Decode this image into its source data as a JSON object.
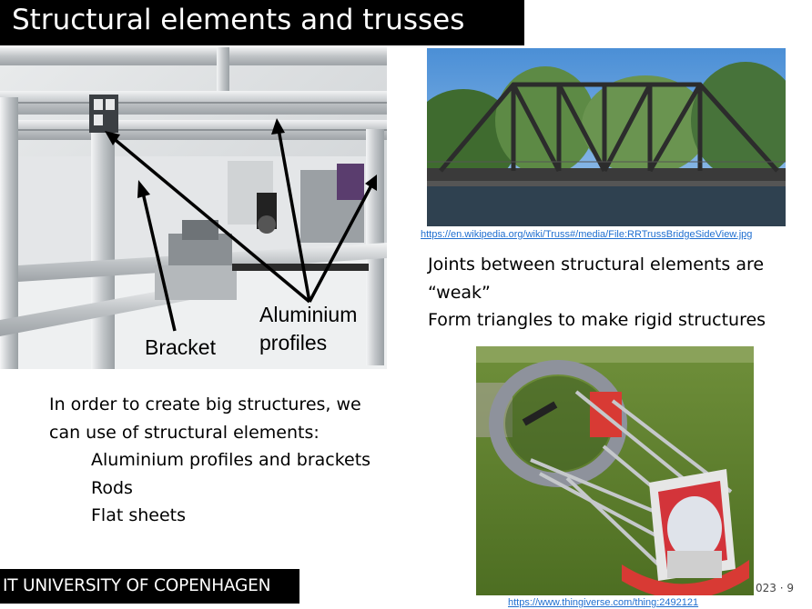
{
  "slide": {
    "title": "Structural elements and trusses",
    "labels": {
      "bracket": "Bracket",
      "aluminium_line1": "Aluminium",
      "aluminium_line2": "profiles"
    },
    "bridge_link": "https://en.wikipedia.org/wiki/Truss#/media/File:RRTrussBridgeSideView.jpg",
    "points": [
      "Joints between structural elements are",
      "“weak”",
      "Form triangles to make rigid structures"
    ],
    "body": {
      "intro_line1": "In order to create big structures, we",
      "intro_line2": "can use of structural elements:",
      "items": [
        "Aluminium profiles and brackets",
        "Rods",
        "Flat sheets"
      ]
    },
    "scope_link": "https://www.thingiverse.com/thing:2492121",
    "footer": "IT UNIVERSITY OF COPENHAGEN",
    "page_marker": "023 · 9"
  }
}
